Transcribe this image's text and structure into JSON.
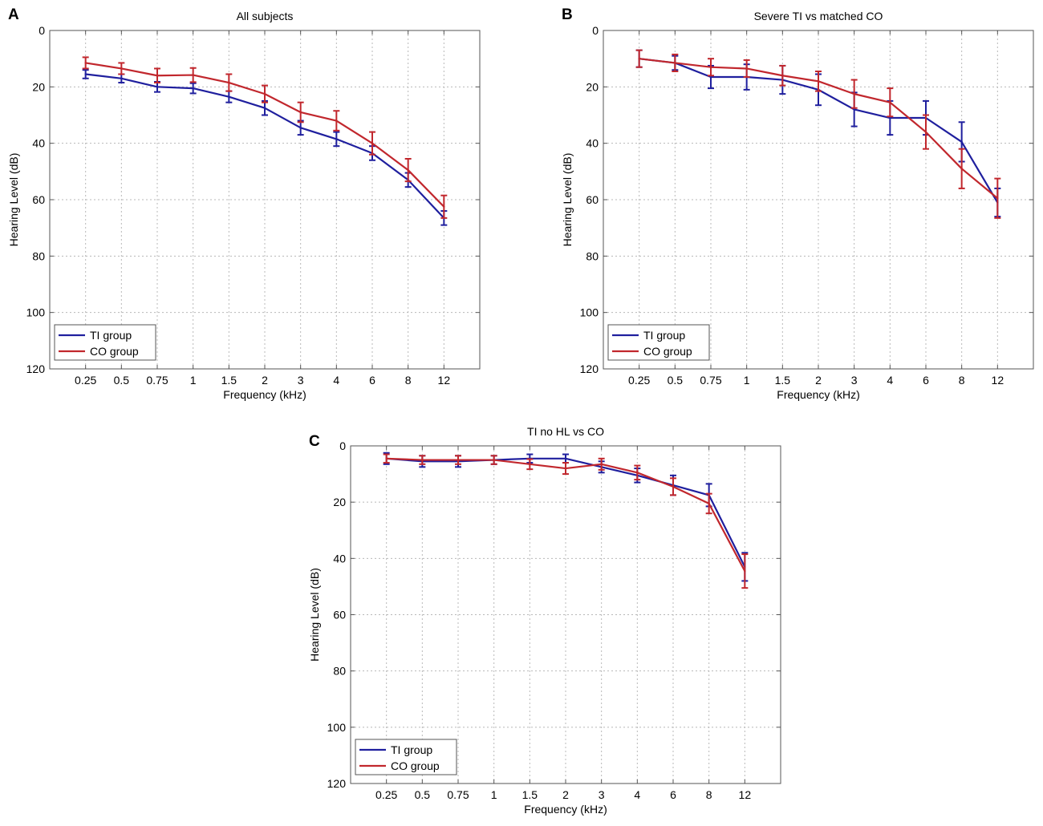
{
  "chart_data": [
    {
      "type": "line",
      "panel": "A",
      "title": "All subjects",
      "xlabel": "Frequency (kHz)",
      "ylabel": "Hearing Level (dB)",
      "ylim": [
        0,
        120
      ],
      "y_inverted": true,
      "yticks": [
        "0",
        "20",
        "40",
        "60",
        "80",
        "100",
        "120"
      ],
      "categories": [
        "0.25",
        "0.5",
        "0.75",
        "1",
        "1.5",
        "2",
        "3",
        "4",
        "6",
        "8",
        "12"
      ],
      "grid": true,
      "legend_position": "bottom-left",
      "series": [
        {
          "name": "TI group",
          "color": "#1f1f9e",
          "values": [
            15.5,
            17,
            20,
            20.5,
            23.5,
            27.5,
            34.5,
            38.5,
            43.5,
            53,
            66.5
          ],
          "errors": [
            1.5,
            1.5,
            1.8,
            1.8,
            2,
            2.5,
            2.5,
            2.5,
            2.5,
            2.5,
            2.5
          ]
        },
        {
          "name": "CO group",
          "color": "#c1272d",
          "values": [
            11.5,
            13.5,
            16,
            15.8,
            18.5,
            22.5,
            29,
            32,
            40,
            49.5,
            62.5
          ],
          "errors": [
            2,
            2,
            2.5,
            2.5,
            3,
            3,
            3.5,
            3.5,
            4,
            4,
            4
          ]
        }
      ]
    },
    {
      "type": "line",
      "panel": "B",
      "title": "Severe TI vs matched CO",
      "xlabel": "Frequency (kHz)",
      "ylabel": "Hearing Level (dB)",
      "ylim": [
        0,
        120
      ],
      "y_inverted": true,
      "yticks": [
        "0",
        "20",
        "40",
        "60",
        "80",
        "100",
        "120"
      ],
      "categories": [
        "0.25",
        "0.5",
        "0.75",
        "1",
        "1.5",
        "2",
        "3",
        "4",
        "6",
        "8",
        "12"
      ],
      "grid": true,
      "legend_position": "bottom-left",
      "series": [
        {
          "name": "TI group",
          "color": "#1f1f9e",
          "values": [
            10,
            11.5,
            16.5,
            16.5,
            17.5,
            21,
            28,
            31,
            31,
            39.5,
            61
          ],
          "errors": [
            3,
            2.5,
            4,
            4.5,
            5,
            5.5,
            6,
            6,
            6,
            7,
            5
          ]
        },
        {
          "name": "CO group",
          "color": "#c1272d",
          "values": [
            10,
            11.5,
            13,
            13.5,
            16,
            18,
            22.5,
            25.5,
            36,
            49,
            59.5
          ],
          "errors": [
            3,
            3,
            3,
            3,
            3.5,
            3.5,
            5,
            5,
            6,
            7,
            7
          ]
        }
      ]
    },
    {
      "type": "line",
      "panel": "C",
      "title": "TI no HL vs CO",
      "xlabel": "Frequency (kHz)",
      "ylabel": "Hearing Level (dB)",
      "ylim": [
        0,
        120
      ],
      "y_inverted": true,
      "yticks": [
        "0",
        "20",
        "40",
        "60",
        "80",
        "100",
        "120"
      ],
      "categories": [
        "0.25",
        "0.5",
        "0.75",
        "1",
        "1.5",
        "2",
        "3",
        "4",
        "6",
        "8",
        "12"
      ],
      "grid": true,
      "legend_position": "bottom-left",
      "series": [
        {
          "name": "TI group",
          "color": "#1f1f9e",
          "values": [
            4.5,
            5.5,
            5.5,
            5,
            4.5,
            4.5,
            7.5,
            10.5,
            14,
            17.5,
            43
          ],
          "errors": [
            2,
            2,
            2,
            1.5,
            1.5,
            1.5,
            2,
            2.5,
            3.5,
            4,
            5
          ]
        },
        {
          "name": "CO group",
          "color": "#c1272d",
          "values": [
            4.5,
            5,
            5,
            5,
            6.5,
            8,
            6.5,
            9.5,
            14.5,
            20.5,
            44.5
          ],
          "errors": [
            1.5,
            1.5,
            1.5,
            1.5,
            1.8,
            2,
            2,
            2.5,
            3,
            3.5,
            6
          ]
        }
      ]
    }
  ]
}
